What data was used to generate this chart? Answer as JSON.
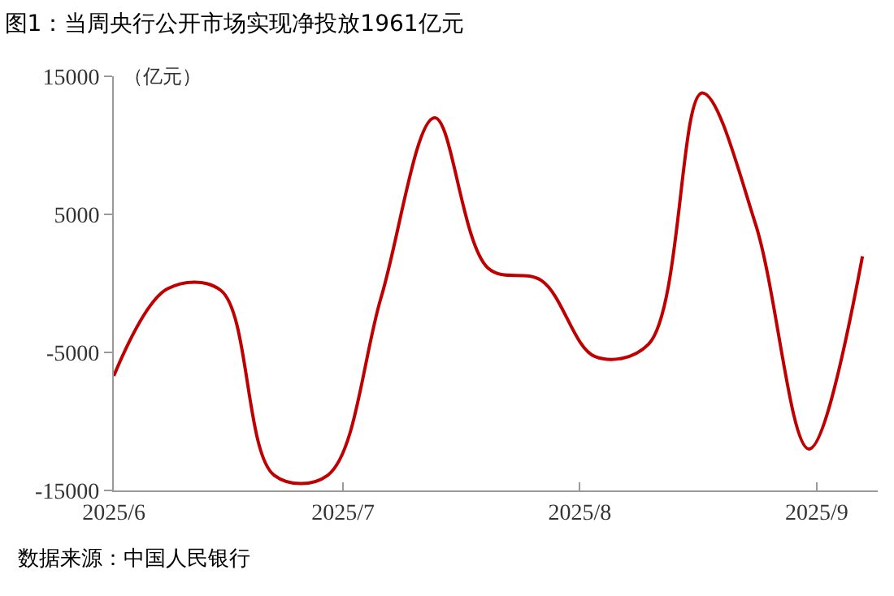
{
  "chart_data": {
    "type": "line",
    "title": "图1：当周央行公开市场实现净投放1961亿元",
    "ylabel": "（亿元）",
    "x": [
      "2025-06-01",
      "2025-06-08",
      "2025-06-15",
      "2025-06-22",
      "2025-06-29",
      "2025-07-06",
      "2025-07-13",
      "2025-07-20",
      "2025-07-27",
      "2025-08-03",
      "2025-08-10",
      "2025-08-17",
      "2025-08-24",
      "2025-08-31",
      "2025-09-07"
    ],
    "series": [
      {
        "color": "#c00000",
        "values": [
          -6700,
          -400,
          -500,
          -13900,
          -13900,
          -1000,
          12000,
          1100,
          200,
          -5300,
          -4400,
          13800,
          4300,
          -12000,
          1961
        ]
      }
    ],
    "xlim": [
      "2025-06-01",
      "2025-09-09"
    ],
    "xticks": [
      {
        "value": "2025-06-01",
        "label": "2025/6"
      },
      {
        "value": "2025-07-01",
        "label": "2025/7"
      },
      {
        "value": "2025-08-01",
        "label": "2025/8"
      },
      {
        "value": "2025-09-01",
        "label": "2025/9"
      }
    ],
    "ylim": [
      -15000,
      15000
    ],
    "yticks": [
      -15000,
      -5000,
      5000,
      15000
    ],
    "marker": "none",
    "line_style": "solid",
    "annotations": [
      "数据来源：中国人民银行"
    ]
  }
}
